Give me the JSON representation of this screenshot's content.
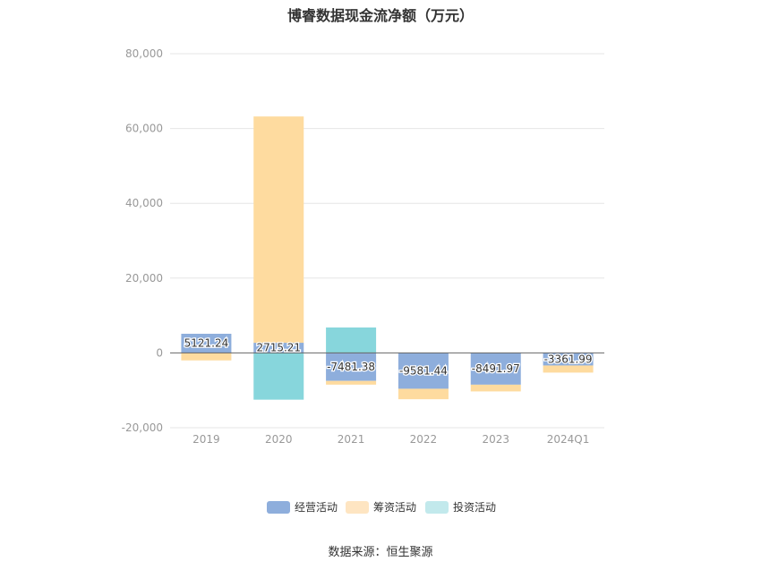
{
  "title": "博睿数据现金流净额（万元）",
  "source": "数据来源：恒生聚源",
  "chart_data": {
    "type": "bar",
    "stacked": true,
    "title": "博睿数据现金流净额（万元）",
    "categories": [
      "2019",
      "2020",
      "2021",
      "2022",
      "2023",
      "2024Q1"
    ],
    "ylim": [
      -20000,
      80000
    ],
    "yticks": [
      80000,
      60000,
      40000,
      20000,
      0,
      -20000
    ],
    "ytick_labels": [
      "80,000",
      "60,000",
      "40,000",
      "20,000",
      "0",
      "-20,000"
    ],
    "grid": true,
    "legend_position": "bottom",
    "series": [
      {
        "name": "经营活动",
        "color": "#8eaedc",
        "values": [
          5121.24,
          2715.21,
          -7481.38,
          -9581.44,
          -8491.97,
          -3361.99
        ],
        "labels": [
          "5121.24",
          "2715.21",
          "-7481.38",
          "-9581.44",
          "-8491.97",
          "-3361.99"
        ]
      },
      {
        "name": "筹资活动",
        "color": "#fedb9f",
        "values": [
          -2000,
          60500,
          -1000,
          -2800,
          -1800,
          -1900
        ]
      },
      {
        "name": "投资活动",
        "color": "#87d6dc",
        "values": [
          0,
          -12500,
          6800,
          0,
          0,
          0
        ]
      }
    ],
    "legend_colors": [
      "#8eaedc",
      "#fee5c2",
      "#c2e9ec"
    ]
  }
}
